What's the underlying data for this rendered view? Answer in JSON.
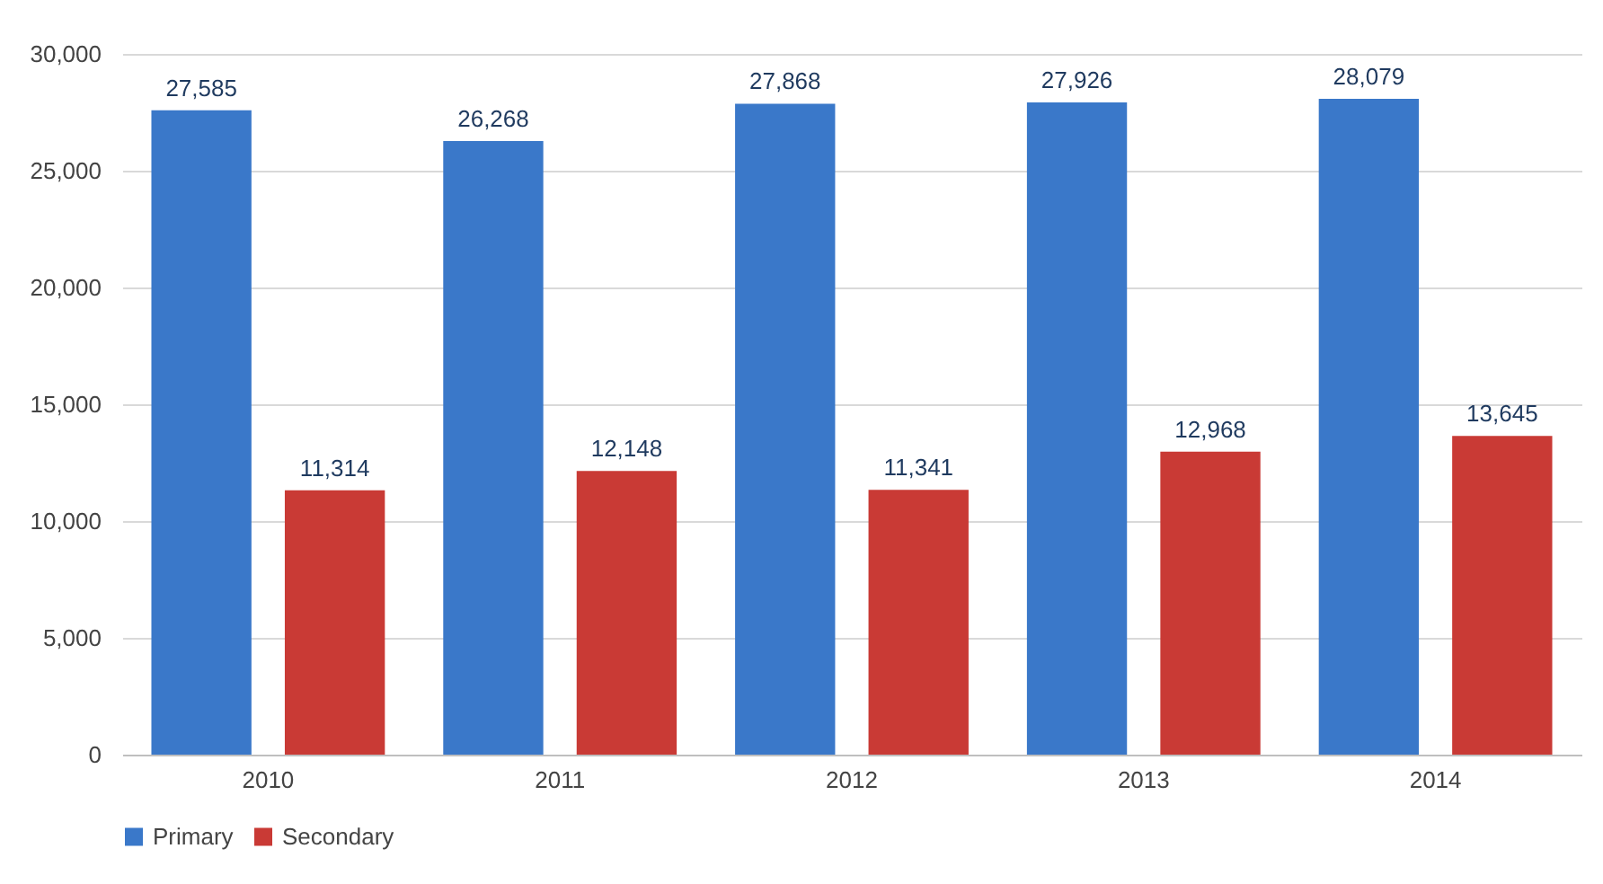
{
  "chart_data": {
    "type": "bar",
    "categories": [
      "2010",
      "2011",
      "2012",
      "2013",
      "2014"
    ],
    "series": [
      {
        "name": "Primary",
        "color": "#3a78c9",
        "values": [
          27585,
          26268,
          27868,
          27926,
          28079
        ],
        "value_labels": [
          "27,585",
          "26,268",
          "27,868",
          "27,926",
          "28,079"
        ]
      },
      {
        "name": "Secondary",
        "color": "#c93a35",
        "values": [
          11314,
          12148,
          11341,
          12968,
          13645
        ],
        "value_labels": [
          "11,314",
          "12,148",
          "11,341",
          "12,968",
          "13,645"
        ]
      }
    ],
    "ylim": [
      0,
      30000
    ],
    "yticks": [
      0,
      {
        "value": 5000,
        "label": "5,000"
      },
      {
        "value": 10000,
        "label": "10,000"
      },
      {
        "value": 15000,
        "label": "15,000"
      },
      {
        "value": 20000,
        "label": "20,000"
      },
      {
        "value": 25000,
        "label": "25,000"
      },
      {
        "value": 30000,
        "label": "30,000"
      }
    ],
    "grid": "y",
    "legend": "bottom"
  }
}
